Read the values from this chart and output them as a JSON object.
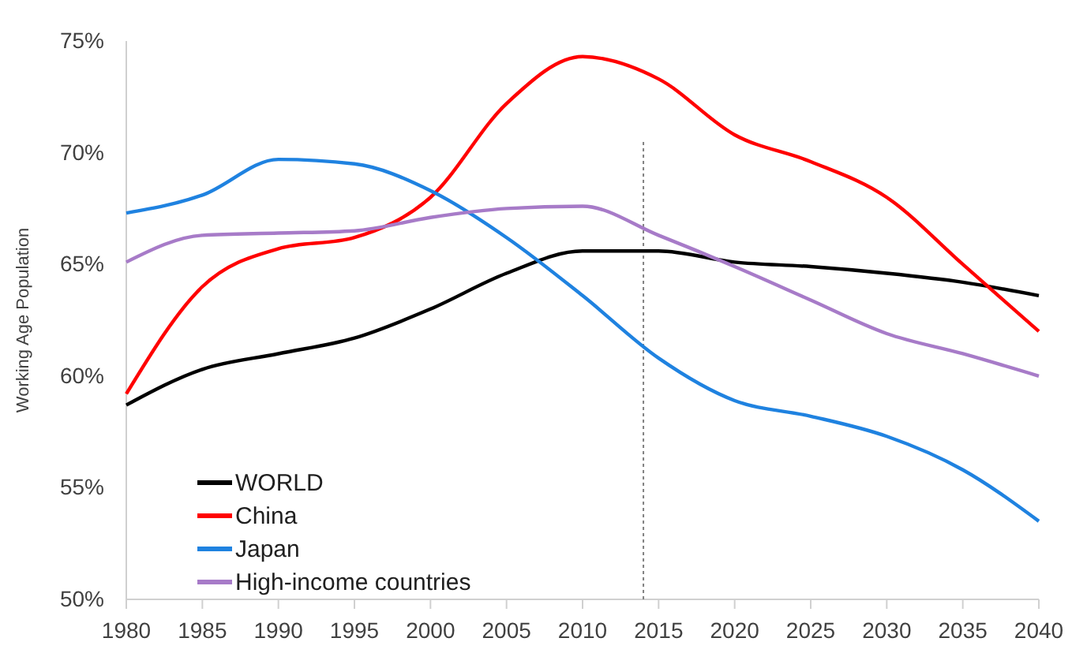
{
  "chart_data": {
    "type": "line",
    "ylabel": "Working Age Population",
    "x": [
      1980,
      1985,
      1990,
      1995,
      2000,
      2005,
      2010,
      2015,
      2020,
      2025,
      2030,
      2035,
      2040
    ],
    "xlim": [
      1980,
      2040
    ],
    "xticks": [
      1980,
      1985,
      1990,
      1995,
      2000,
      2005,
      2010,
      2015,
      2020,
      2025,
      2030,
      2035,
      2040
    ],
    "ylim": [
      50,
      75
    ],
    "yticks": [
      {
        "value": 50,
        "label": "50%"
      },
      {
        "value": 55,
        "label": "55%"
      },
      {
        "value": 60,
        "label": "60%"
      },
      {
        "value": 65,
        "label": "65%"
      },
      {
        "value": 70,
        "label": "70%"
      },
      {
        "value": 75,
        "label": "75%"
      }
    ],
    "grid": false,
    "legend": "bottom left",
    "marker": "none",
    "line_style": "solid",
    "ref_lines": [
      {
        "axis": "x",
        "value": 2014,
        "color": "#808080",
        "line_style": "dotted"
      }
    ],
    "series": [
      {
        "name": "WORLD",
        "color": "#000000",
        "values": [
          58.7,
          60.3,
          61.0,
          61.7,
          63.0,
          64.6,
          65.6,
          65.6,
          65.1,
          64.9,
          64.6,
          64.2,
          63.6
        ]
      },
      {
        "name": "China",
        "color": "#ff0000",
        "values": [
          59.2,
          64.0,
          65.7,
          66.2,
          68.0,
          72.2,
          74.3,
          73.3,
          70.8,
          69.6,
          68.0,
          65.0,
          62.0
        ]
      },
      {
        "name": "Japan",
        "color": "#1f82e0",
        "values": [
          67.3,
          68.1,
          69.7,
          69.5,
          68.3,
          66.2,
          63.6,
          60.8,
          58.9,
          58.2,
          57.3,
          55.8,
          53.5
        ]
      },
      {
        "name": "High-income countries",
        "color": "#a77bc8",
        "values": [
          65.1,
          66.3,
          66.4,
          66.5,
          67.1,
          67.5,
          67.6,
          66.3,
          64.9,
          63.4,
          61.9,
          61.0,
          60.0
        ]
      }
    ]
  }
}
